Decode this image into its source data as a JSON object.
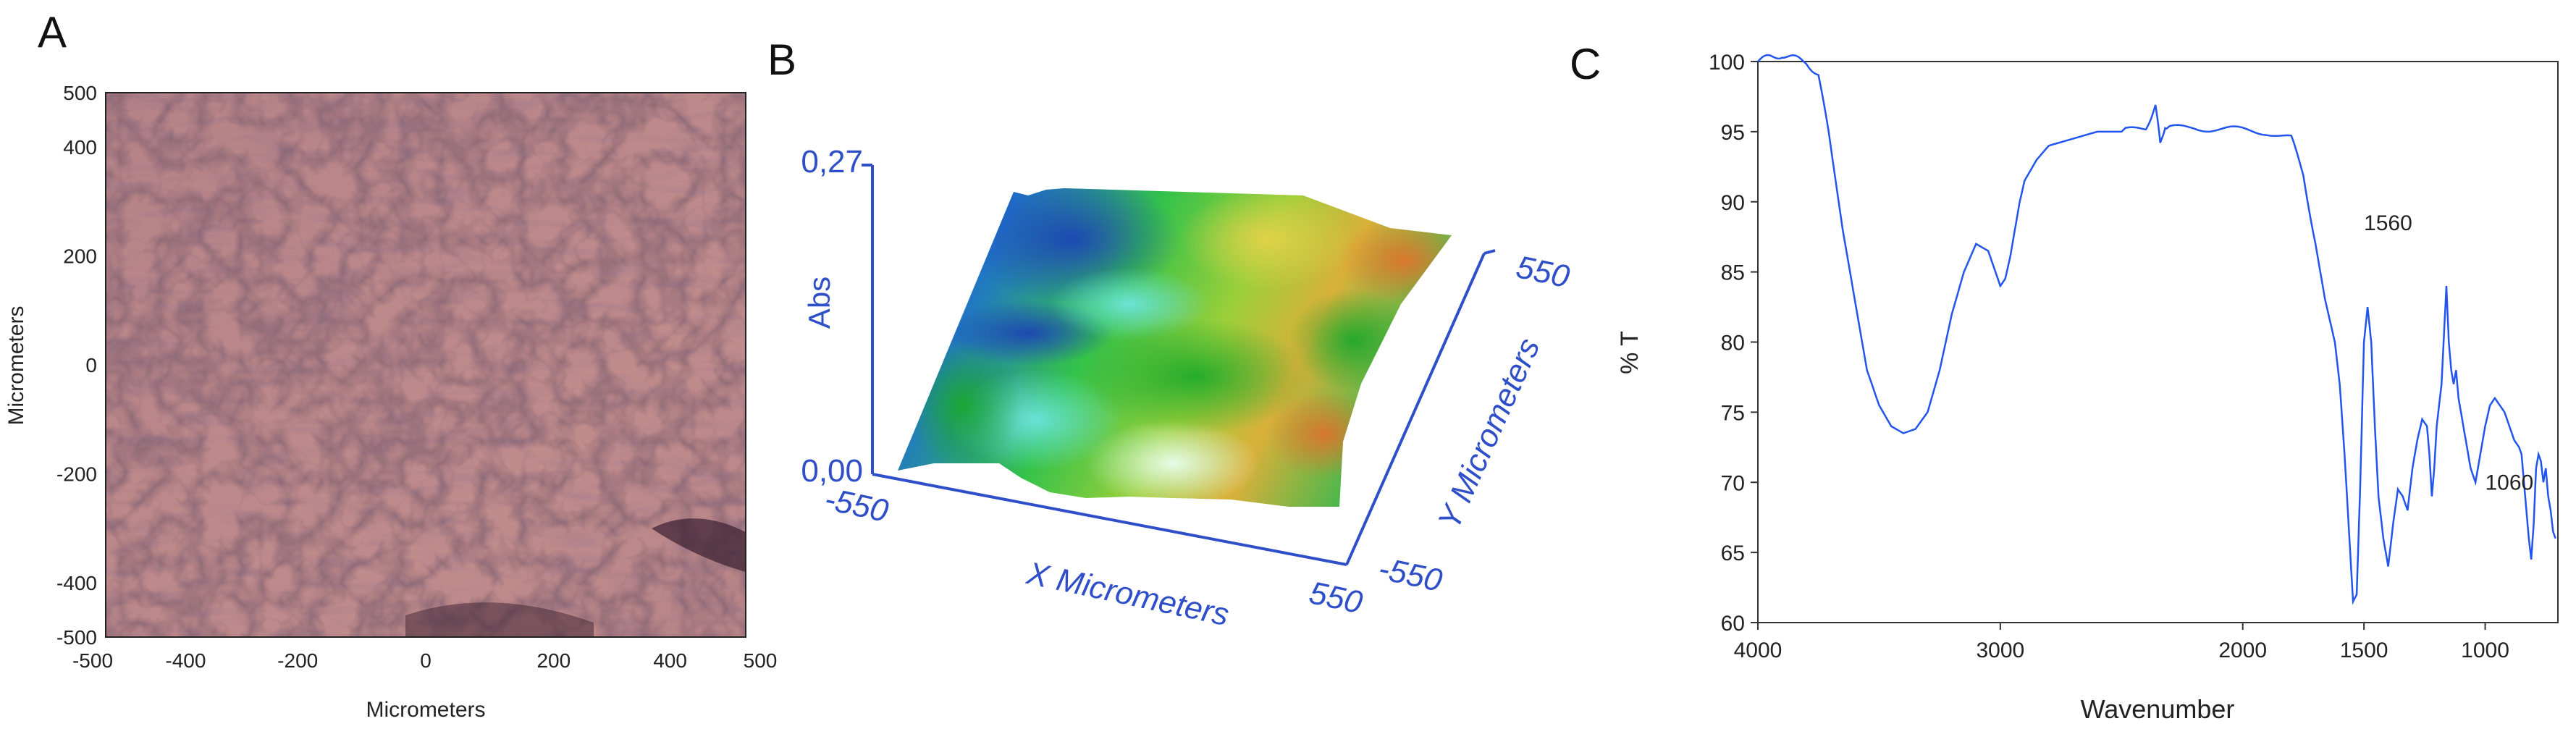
{
  "panels": [
    "A",
    "B",
    "C"
  ],
  "panel_a": {
    "xlabel": "Micrometers",
    "ylabel": "Micrometers",
    "xticks": [
      "-500",
      "-400",
      "-200",
      "0",
      "200",
      "400",
      "500"
    ],
    "yticks": [
      "500",
      "400",
      "200",
      "0",
      "-200",
      "-400",
      "-500"
    ]
  },
  "panel_b": {
    "zlabel": "Abs",
    "xlabel": "X Micrometers",
    "ylabel": "Y Micrometers",
    "z_top": "0,27",
    "z_bottom": "0,00",
    "x_min": "-550",
    "x_max": "550",
    "y_min": "-550",
    "y_max": "550",
    "axis_color": "#2f4fc9"
  },
  "chart_data": [
    {
      "type": "heatmap",
      "panel": "A",
      "xlabel": "Micrometers",
      "ylabel": "Micrometers",
      "xlim": [
        -500,
        500
      ],
      "ylim": [
        -500,
        500
      ]
    },
    {
      "type": "heatmap",
      "panel": "B",
      "xlabel": "X Micrometers",
      "ylabel": "Y Micrometers",
      "zlabel": "Abs",
      "xlim": [
        -550,
        550
      ],
      "ylim": [
        -550,
        550
      ],
      "zlim": [
        0.0,
        0.27
      ]
    },
    {
      "type": "line",
      "panel": "C",
      "xlabel": "Wavenumber",
      "ylabel": "% T",
      "xlim": [
        4000,
        700
      ],
      "ylim": [
        60,
        100
      ],
      "xticks": [
        4000,
        3000,
        2000,
        1500,
        1000
      ],
      "yticks": [
        100,
        95,
        90,
        85,
        80,
        75,
        70,
        65,
        60
      ],
      "color": "#2255ee",
      "annotations": [
        {
          "text": "1560",
          "x": 1560,
          "y": 88.5
        },
        {
          "text": "1060",
          "x": 1060,
          "y": 70
        }
      ],
      "series": [
        {
          "x": [
            4000,
            3950,
            3900,
            3850,
            3800,
            3750,
            3700,
            3650,
            3600,
            3550,
            3500,
            3450,
            3400,
            3350,
            3300,
            3250,
            3200,
            3150,
            3100,
            3050,
            3000,
            2980,
            2960,
            2940,
            2920,
            2900,
            2850,
            2800,
            2700,
            2600,
            2500,
            2400,
            2360,
            2340,
            2320,
            2300,
            2200,
            2100,
            2000,
            1900,
            1800,
            1750,
            1700,
            1680,
            1660,
            1640,
            1620,
            1600,
            1580,
            1560,
            1545,
            1530,
            1515,
            1500,
            1485,
            1470,
            1455,
            1440,
            1420,
            1400,
            1380,
            1360,
            1340,
            1320,
            1300,
            1280,
            1260,
            1240,
            1230,
            1220,
            1210,
            1200,
            1180,
            1160,
            1150,
            1140,
            1130,
            1120,
            1110,
            1100,
            1080,
            1060,
            1040,
            1020,
            1000,
            980,
            960,
            940,
            920,
            900,
            880,
            860,
            850,
            840,
            830,
            820,
            810,
            800,
            790,
            780,
            770,
            760,
            750,
            740,
            730,
            720,
            710
          ],
          "y": [
            100,
            100.3,
            100.5,
            100.2,
            100,
            99,
            94,
            88,
            83,
            78,
            75.5,
            74,
            73.5,
            73.8,
            75,
            78,
            82,
            85,
            87,
            86.5,
            84,
            84.5,
            86,
            88,
            90,
            91.5,
            93,
            94,
            94.5,
            95,
            95,
            95.2,
            97,
            94,
            95.5,
            95.2,
            95.3,
            95.2,
            95.1,
            95,
            94.5,
            92,
            87,
            85,
            83,
            81.5,
            80,
            77,
            72,
            66,
            61.5,
            62,
            70,
            80,
            82.5,
            80,
            74,
            69,
            66,
            64,
            67,
            69.5,
            69,
            68,
            71,
            73,
            74.5,
            74,
            72,
            69,
            71,
            74,
            77,
            84,
            80,
            78,
            77,
            78,
            76,
            75,
            73,
            71,
            70,
            72,
            74,
            75.5,
            76,
            75.5,
            75,
            74,
            73,
            72.5,
            72,
            70,
            68,
            66,
            64.5,
            67,
            71,
            72,
            71.5,
            70,
            71,
            69,
            68,
            66.5,
            66
          ]
        }
      ]
    }
  ]
}
